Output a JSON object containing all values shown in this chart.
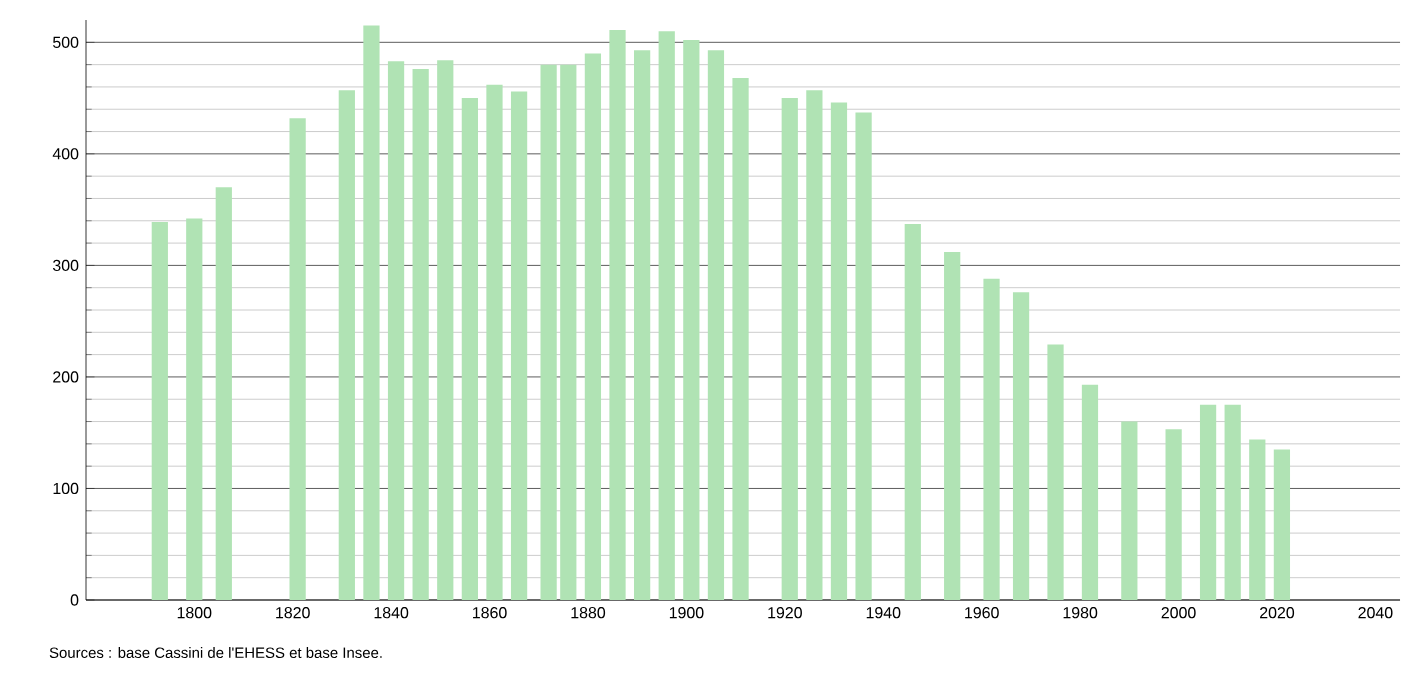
{
  "chart_data": {
    "type": "bar",
    "x": [
      1793,
      1800,
      1806,
      1821,
      1831,
      1836,
      1841,
      1846,
      1851,
      1856,
      1861,
      1866,
      1872,
      1876,
      1881,
      1886,
      1891,
      1896,
      1901,
      1906,
      1911,
      1921,
      1926,
      1931,
      1936,
      1946,
      1954,
      1962,
      1968,
      1975,
      1982,
      1990,
      1999,
      2006,
      2011,
      2016,
      2021
    ],
    "values": [
      339,
      342,
      370,
      432,
      457,
      515,
      483,
      476,
      484,
      450,
      462,
      456,
      480,
      480,
      490,
      511,
      493,
      510,
      502,
      493,
      468,
      450,
      457,
      446,
      437,
      337,
      312,
      288,
      276,
      229,
      193,
      160,
      153,
      175,
      175,
      144,
      135
    ],
    "color": "#b0e3b4",
    "xlim": [
      1778,
      2045
    ],
    "ylim": [
      0,
      520
    ],
    "xticks": [
      1800,
      1820,
      1840,
      1860,
      1880,
      1900,
      1920,
      1940,
      1960,
      1980,
      2000,
      2020,
      2040
    ],
    "yticks": [
      0,
      100,
      200,
      300,
      400,
      500
    ],
    "grid": "y",
    "annotations": [
      "Sources : base Cassini de l'EHESS et base Insee."
    ]
  }
}
